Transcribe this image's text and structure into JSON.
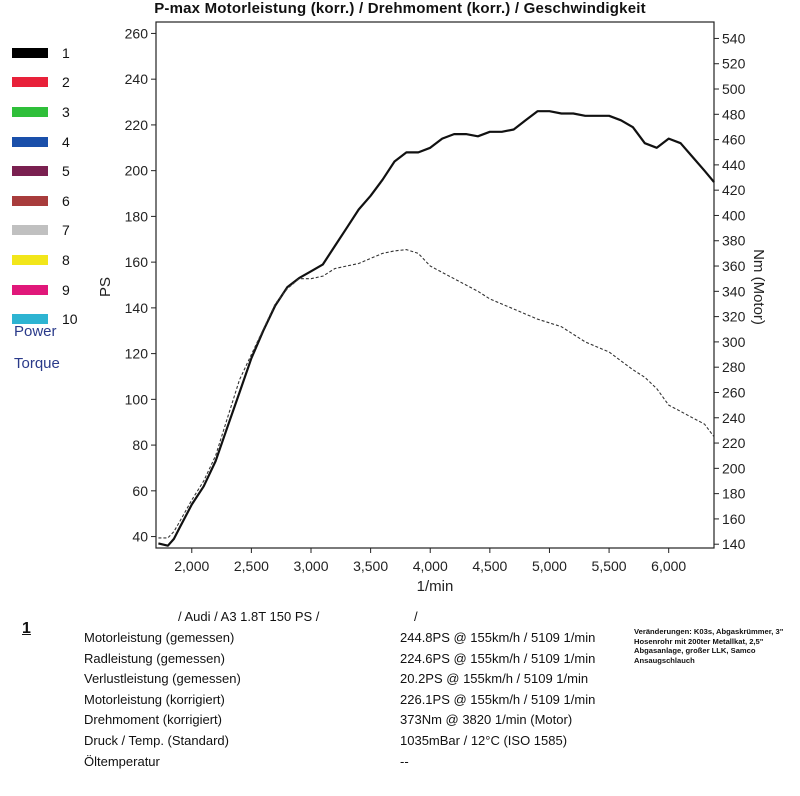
{
  "chart_data": {
    "type": "line",
    "title": "P-max Motorleistung (korr.) / Drehmoment (korr.) / Geschwindigkeit",
    "xlabel": "1/min",
    "ylabel_left": "PS",
    "ylabel_right": "Nm (Motor)",
    "xlim": [
      1700,
      6380
    ],
    "ylim_left": [
      35,
      265
    ],
    "ylim_right": [
      137,
      553
    ],
    "x_ticks": [
      2000,
      2500,
      3000,
      3500,
      4000,
      4500,
      5000,
      5500,
      6000
    ],
    "x_tick_labels": [
      "2,000",
      "2,500",
      "3,000",
      "3,500",
      "4,000",
      "4,500",
      "5,000",
      "5,500",
      "6,000"
    ],
    "y_left_ticks": [
      40,
      60,
      80,
      100,
      120,
      140,
      160,
      180,
      200,
      220,
      240,
      260
    ],
    "y_right_ticks": [
      140,
      160,
      180,
      200,
      220,
      240,
      260,
      280,
      300,
      320,
      340,
      360,
      380,
      400,
      420,
      440,
      460,
      480,
      500,
      520,
      540
    ],
    "grid": false,
    "legend_position": "left",
    "series": [
      {
        "name": "Power",
        "axis": "left",
        "style": "solid",
        "color": "#111111",
        "x": [
          1720,
          1800,
          1850,
          1900,
          2000,
          2100,
          2200,
          2300,
          2400,
          2500,
          2600,
          2700,
          2800,
          2900,
          3000,
          3100,
          3200,
          3300,
          3400,
          3500,
          3600,
          3700,
          3800,
          3900,
          4000,
          4100,
          4200,
          4300,
          4400,
          4500,
          4600,
          4700,
          4800,
          4900,
          5000,
          5100,
          5200,
          5300,
          5400,
          5500,
          5600,
          5700,
          5800,
          5900,
          6000,
          6100,
          6200,
          6300,
          6380
        ],
        "values": [
          37,
          36,
          39,
          44,
          54,
          62,
          73,
          88,
          103,
          118,
          130,
          141,
          149,
          153,
          156,
          159,
          167,
          175,
          183,
          189,
          196,
          204,
          208,
          208,
          210,
          214,
          216,
          216,
          215,
          217,
          217,
          218,
          222,
          226,
          226,
          225,
          225,
          224,
          224,
          224,
          222,
          219,
          212,
          210,
          214,
          212,
          206,
          200,
          195
        ]
      },
      {
        "name": "Torque",
        "axis": "right",
        "style": "dashed",
        "color": "#333333",
        "x": [
          1720,
          1800,
          1850,
          1900,
          2000,
          2100,
          2200,
          2300,
          2400,
          2500,
          2600,
          2700,
          2800,
          2900,
          3000,
          3100,
          3200,
          3300,
          3400,
          3500,
          3600,
          3700,
          3800,
          3900,
          4000,
          4100,
          4200,
          4300,
          4400,
          4500,
          4600,
          4700,
          4800,
          4900,
          5000,
          5100,
          5200,
          5300,
          5400,
          5500,
          5600,
          5700,
          5800,
          5900,
          6000,
          6100,
          6200,
          6300,
          6380
        ],
        "values": [
          145,
          145,
          150,
          158,
          175,
          190,
          210,
          240,
          270,
          290,
          310,
          330,
          342,
          350,
          350,
          352,
          358,
          360,
          362,
          366,
          370,
          372,
          373,
          370,
          360,
          355,
          350,
          345,
          340,
          334,
          330,
          326,
          322,
          318,
          315,
          312,
          306,
          300,
          296,
          292,
          285,
          278,
          272,
          263,
          250,
          245,
          240,
          235,
          225
        ]
      }
    ]
  },
  "legend": {
    "items": [
      {
        "label": "1",
        "color": "#000000"
      },
      {
        "label": "2",
        "color": "#e8213a"
      },
      {
        "label": "3",
        "color": "#2fbf3a"
      },
      {
        "label": "4",
        "color": "#1a4faa"
      },
      {
        "label": "5",
        "color": "#7a2050"
      },
      {
        "label": "6",
        "color": "#a83c3c"
      },
      {
        "label": "7",
        "color": "#c0c0c0"
      },
      {
        "label": "8",
        "color": "#f2e61a"
      },
      {
        "label": "9",
        "color": "#e0187a"
      },
      {
        "label": "10",
        "color": "#2db4d2"
      }
    ],
    "power_label": "Power",
    "torque_label": "Torque"
  },
  "info": {
    "run_number": "1",
    "vehicle": "/ Audi / A3 1.8T 150 PS /",
    "vehicle_suffix": "/",
    "rows": [
      {
        "label": "Motorleistung (gemessen)",
        "value": "244.8PS @ 155km/h / 5109 1/min"
      },
      {
        "label": "Radleistung (gemessen)",
        "value": "224.6PS @ 155km/h / 5109 1/min"
      },
      {
        "label": "Verlustleistung (gemessen)",
        "value": "20.2PS @ 155km/h / 5109 1/min"
      },
      {
        "label": "Motorleistung (korrigiert)",
        "value": "226.1PS @ 155km/h / 5109 1/min"
      },
      {
        "label": "Drehmoment (korrigiert)",
        "value": "373Nm @ 3820 1/min (Motor)"
      },
      {
        "label": "Druck / Temp. (Standard)",
        "value": "1035mBar / 12°C    (ISO 1585)"
      },
      {
        "label": "Öltemperatur",
        "value": "--"
      }
    ],
    "notes": "Veränderungen: K03s, Abgaskrümmer, 3\" Hosenrohr mit 200ter Metallkat, 2,5\" Abgasanlage, großer LLK, Samco Ansaugschlauch"
  }
}
